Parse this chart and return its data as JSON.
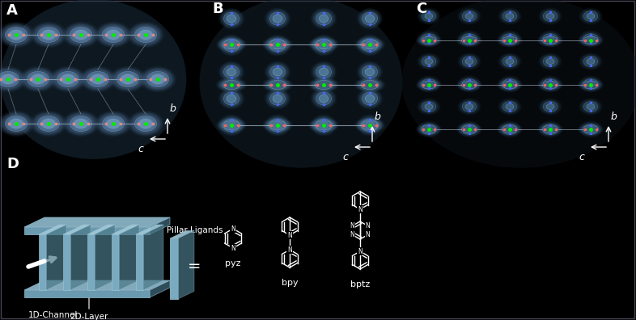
{
  "bg_color": "#000000",
  "text_color": "#ffffff",
  "panel_labels": [
    "A",
    "B",
    "C",
    "D"
  ],
  "panel_label_fontsize": 13,
  "panel_label_weight": "bold",
  "axis_b": "b",
  "axis_c": "c",
  "label_1d": "1D-Channel",
  "label_2d": "2D-Layer",
  "label_pillar": "Pillar Ligands",
  "mol_pyz": "pyz",
  "mol_bpy": "bpy",
  "mol_bptz": "bptz",
  "crystal_base": "#3a5570",
  "crystal_edge": "#8ab0cc",
  "crystal_glow": "#6090b8",
  "atom_cu": "#00ee00",
  "atom_o": "#ff3333",
  "atom_n": "#4466ff",
  "atom_h": "#ffffff",
  "bond_color": "#ccddee",
  "pillar3d_color": "#6090a8",
  "slab_color": "#7098b0",
  "struct_white": "#ffffff"
}
